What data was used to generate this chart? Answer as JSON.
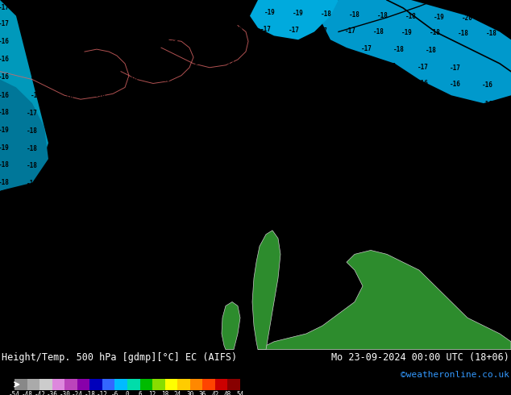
{
  "title_left": "Height/Temp. 500 hPa [gdmp][°C] EC (AIFS)",
  "title_right": "Mo 23-09-2024 00:00 UTC (18+06)",
  "credit": "©weatheronline.co.uk",
  "colorbar_ticks": [
    -54,
    -48,
    -42,
    -36,
    -30,
    -24,
    -18,
    -12,
    -6,
    0,
    6,
    12,
    18,
    24,
    30,
    36,
    42,
    48,
    54
  ],
  "colorbar_colors": [
    "#888888",
    "#aaaaaa",
    "#cccccc",
    "#dd88dd",
    "#bb44bb",
    "#8800aa",
    "#0000bb",
    "#3366ff",
    "#00bbff",
    "#00ddaa",
    "#00bb00",
    "#88dd00",
    "#ffff00",
    "#ffcc00",
    "#ff8800",
    "#ff4400",
    "#cc0000",
    "#880000"
  ],
  "bg_color_main": "#00cfff",
  "bg_color_dark": "#0099cc",
  "bg_color_left": "#0099bb",
  "land_color": "#2d8c2d",
  "land_border_color": "#cccccc",
  "coast_color": "#dd6666",
  "contour_color": "#000000",
  "label_color": "#000000",
  "fig_width": 6.34,
  "fig_height": 4.9,
  "dpi": 100
}
